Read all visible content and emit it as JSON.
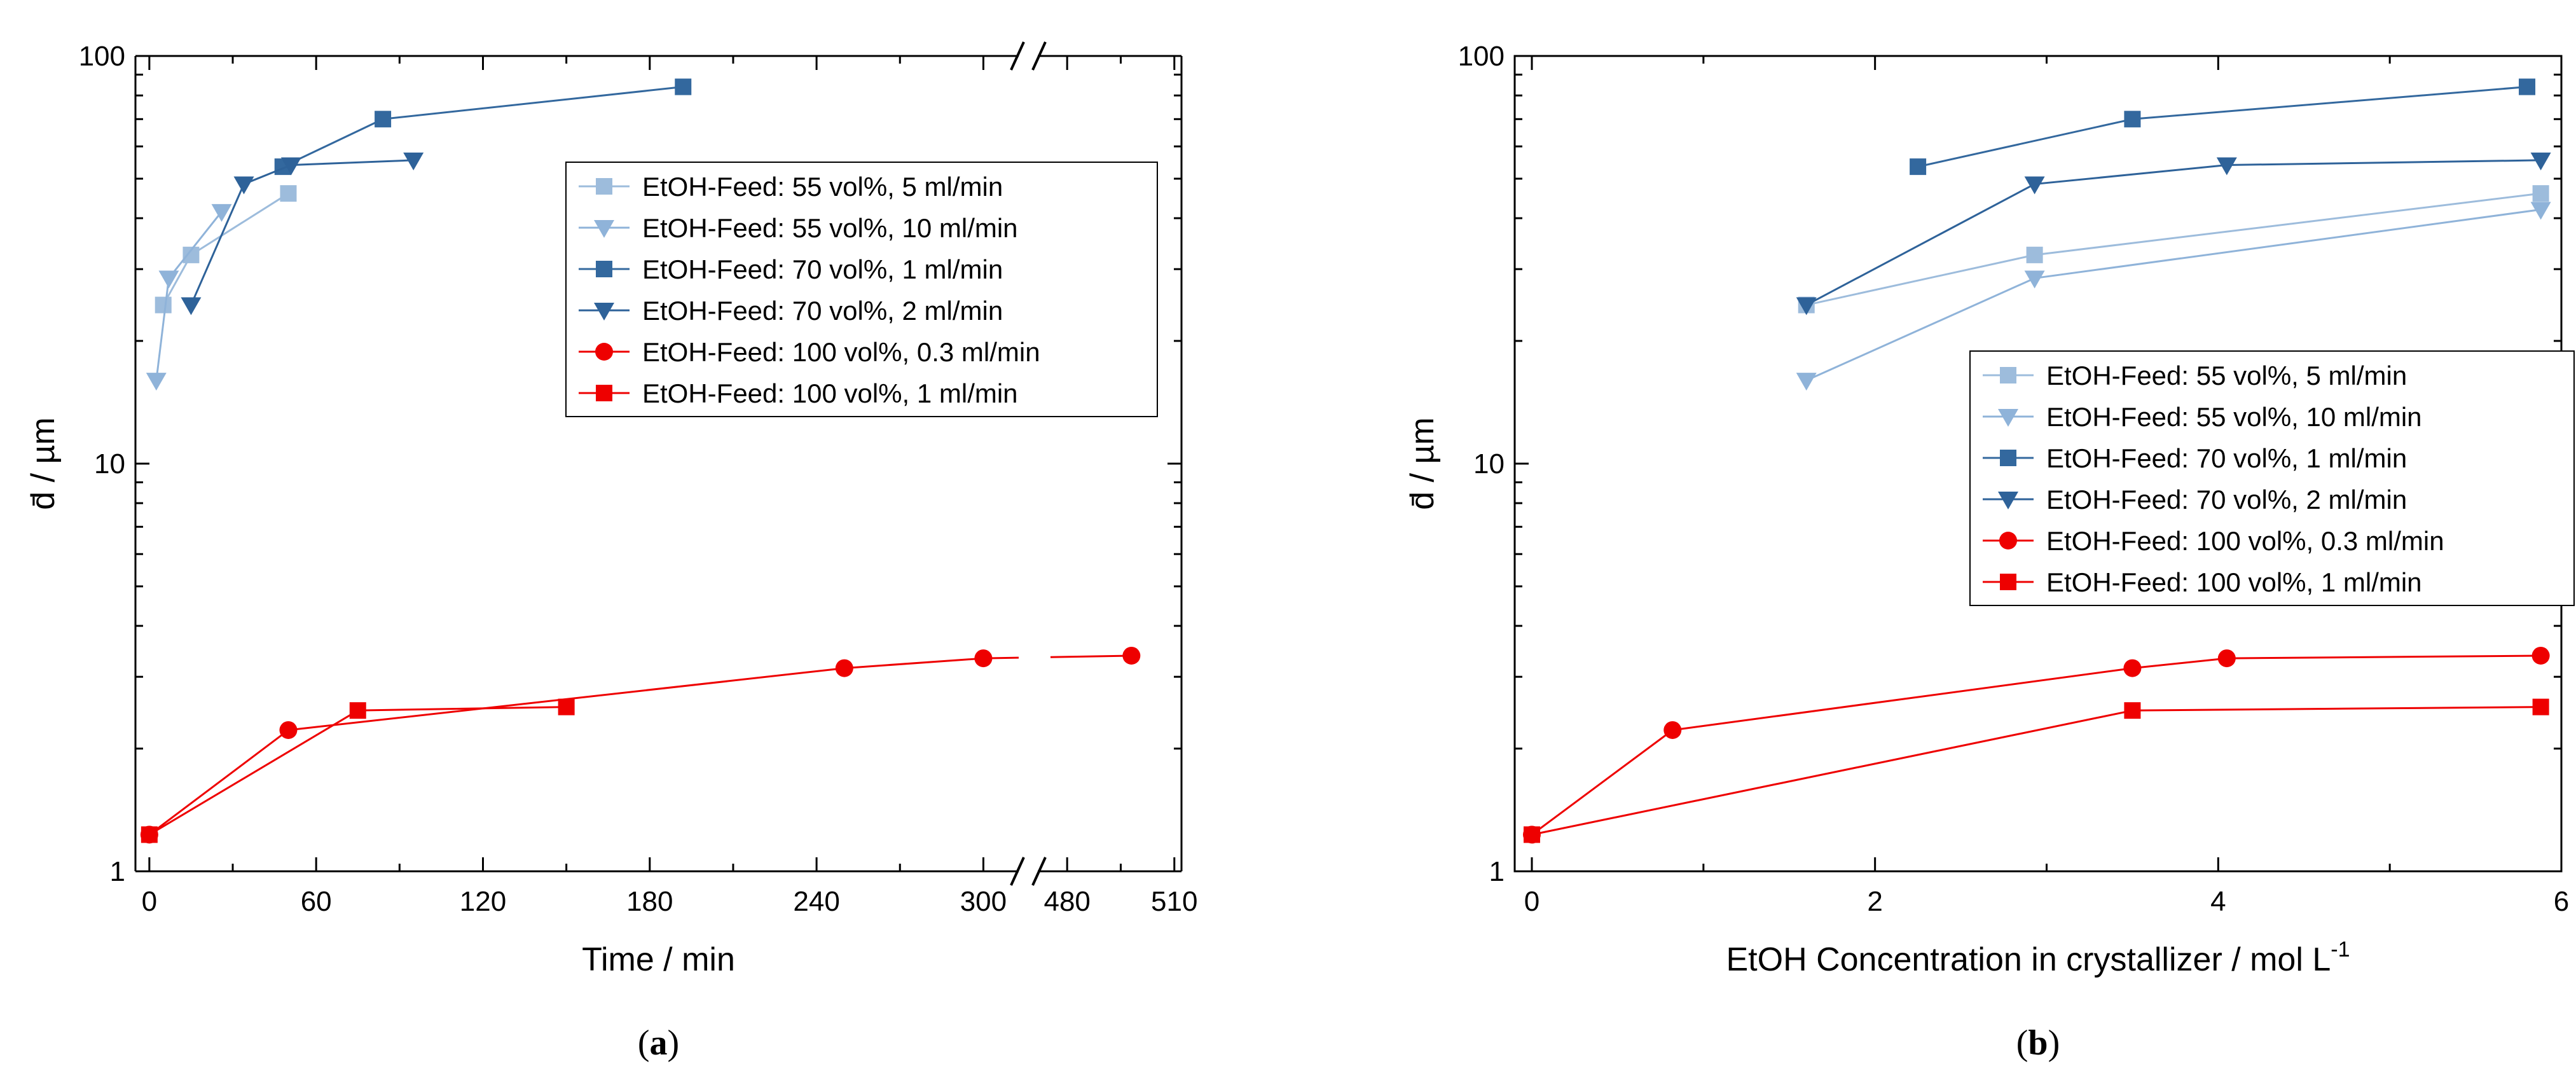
{
  "colors": {
    "c55_5": "#9dbcdc",
    "c55_10": "#8fb3d9",
    "c70_1": "#33689e",
    "c70_2": "#2e6299",
    "c100": "#ee0000"
  },
  "chart_data": [
    {
      "type": "line",
      "panel": "a",
      "caption_letter": "a",
      "xlabel": "Time / min",
      "ylabel": "d̄ / µm",
      "yscale": "log",
      "ylim": [
        1,
        100
      ],
      "y_ticks": [
        "1",
        "10",
        "100"
      ],
      "x_break": true,
      "xlim_left": [
        -5,
        315
      ],
      "xlim_right": [
        470,
        512
      ],
      "x_ticks_left": [
        "0",
        "60",
        "120",
        "180",
        "240",
        "300"
      ],
      "x_ticks_right": [
        "480",
        "510"
      ],
      "legend_position": "upper-right",
      "series": [
        {
          "name": "EtOH-Feed: 55 vol%, 5 ml/min",
          "marker": "square",
          "color_key": "c55_5",
          "points": [
            [
              5,
              24.5
            ],
            [
              15,
              32.5
            ],
            [
              50,
              46
            ]
          ]
        },
        {
          "name": "EtOH-Feed: 55 vol%, 10 ml/min",
          "marker": "triangle-down",
          "color_key": "c55_10",
          "points": [
            [
              2.5,
              16
            ],
            [
              7,
              28.5
            ],
            [
              26,
              41.5
            ]
          ]
        },
        {
          "name": "EtOH-Feed: 70 vol%, 1 ml/min",
          "marker": "square",
          "color_key": "c70_1",
          "points": [
            [
              48,
              53.5
            ],
            [
              84,
              70
            ],
            [
              192,
              84
            ]
          ]
        },
        {
          "name": "EtOH-Feed: 70 vol%, 2 ml/min",
          "marker": "triangle-down",
          "color_key": "c70_2",
          "points": [
            [
              15,
              24.5
            ],
            [
              34,
              48.5
            ],
            [
              51,
              54
            ],
            [
              95,
              55.5
            ]
          ]
        },
        {
          "name": "EtOH-Feed: 100 vol%, 0.3 ml/min",
          "marker": "circle",
          "color_key": "c100",
          "points": [
            [
              0,
              1.23
            ],
            [
              50,
              2.22
            ],
            [
              250,
              3.15
            ],
            [
              300,
              3.33
            ],
            [
              498,
              3.38
            ]
          ]
        },
        {
          "name": "EtOH-Feed: 100 vol%, 1 ml/min",
          "marker": "square",
          "color_key": "c100",
          "points": [
            [
              0,
              1.23
            ],
            [
              75,
              2.48
            ],
            [
              150,
              2.53
            ]
          ]
        }
      ]
    },
    {
      "type": "line",
      "panel": "b",
      "caption_letter": "b",
      "xlabel": "EtOH Concentration in crystallizer / mol L",
      "xlabel_superscript": "-1",
      "ylabel": "d̄ / µm",
      "yscale": "log",
      "ylim": [
        1,
        100
      ],
      "y_ticks": [
        "1",
        "10",
        "100"
      ],
      "xlim": [
        -0.1,
        6.0
      ],
      "x_ticks": [
        "0",
        "2",
        "4",
        "6"
      ],
      "legend_position": "center-right",
      "series": [
        {
          "name": "EtOH-Feed: 55 vol%, 5 ml/min",
          "marker": "square",
          "color_key": "c55_5",
          "points": [
            [
              1.6,
              24.5
            ],
            [
              2.93,
              32.5
            ],
            [
              5.88,
              46
            ]
          ]
        },
        {
          "name": "EtOH-Feed: 55 vol%, 10 ml/min",
          "marker": "triangle-down",
          "color_key": "c55_10",
          "points": [
            [
              1.6,
              16
            ],
            [
              2.93,
              28.5
            ],
            [
              5.88,
              42
            ]
          ]
        },
        {
          "name": "EtOH-Feed: 70 vol%, 1 ml/min",
          "marker": "square",
          "color_key": "c70_1",
          "points": [
            [
              2.25,
              53.5
            ],
            [
              3.5,
              70
            ],
            [
              5.8,
              84
            ]
          ]
        },
        {
          "name": "EtOH-Feed: 70 vol%, 2 ml/min",
          "marker": "triangle-down",
          "color_key": "c70_2",
          "points": [
            [
              1.6,
              24.5
            ],
            [
              2.93,
              48.5
            ],
            [
              4.05,
              54
            ],
            [
              5.88,
              55.5
            ]
          ]
        },
        {
          "name": "EtOH-Feed: 100 vol%, 0.3 ml/min",
          "marker": "circle",
          "color_key": "c100",
          "points": [
            [
              0,
              1.23
            ],
            [
              0.82,
              2.22
            ],
            [
              3.5,
              3.15
            ],
            [
              4.05,
              3.33
            ],
            [
              5.88,
              3.38
            ]
          ]
        },
        {
          "name": "EtOH-Feed: 100 vol%, 1 ml/min",
          "marker": "square",
          "color_key": "c100",
          "points": [
            [
              0,
              1.23
            ],
            [
              3.5,
              2.48
            ],
            [
              5.88,
              2.53
            ]
          ]
        }
      ]
    }
  ]
}
